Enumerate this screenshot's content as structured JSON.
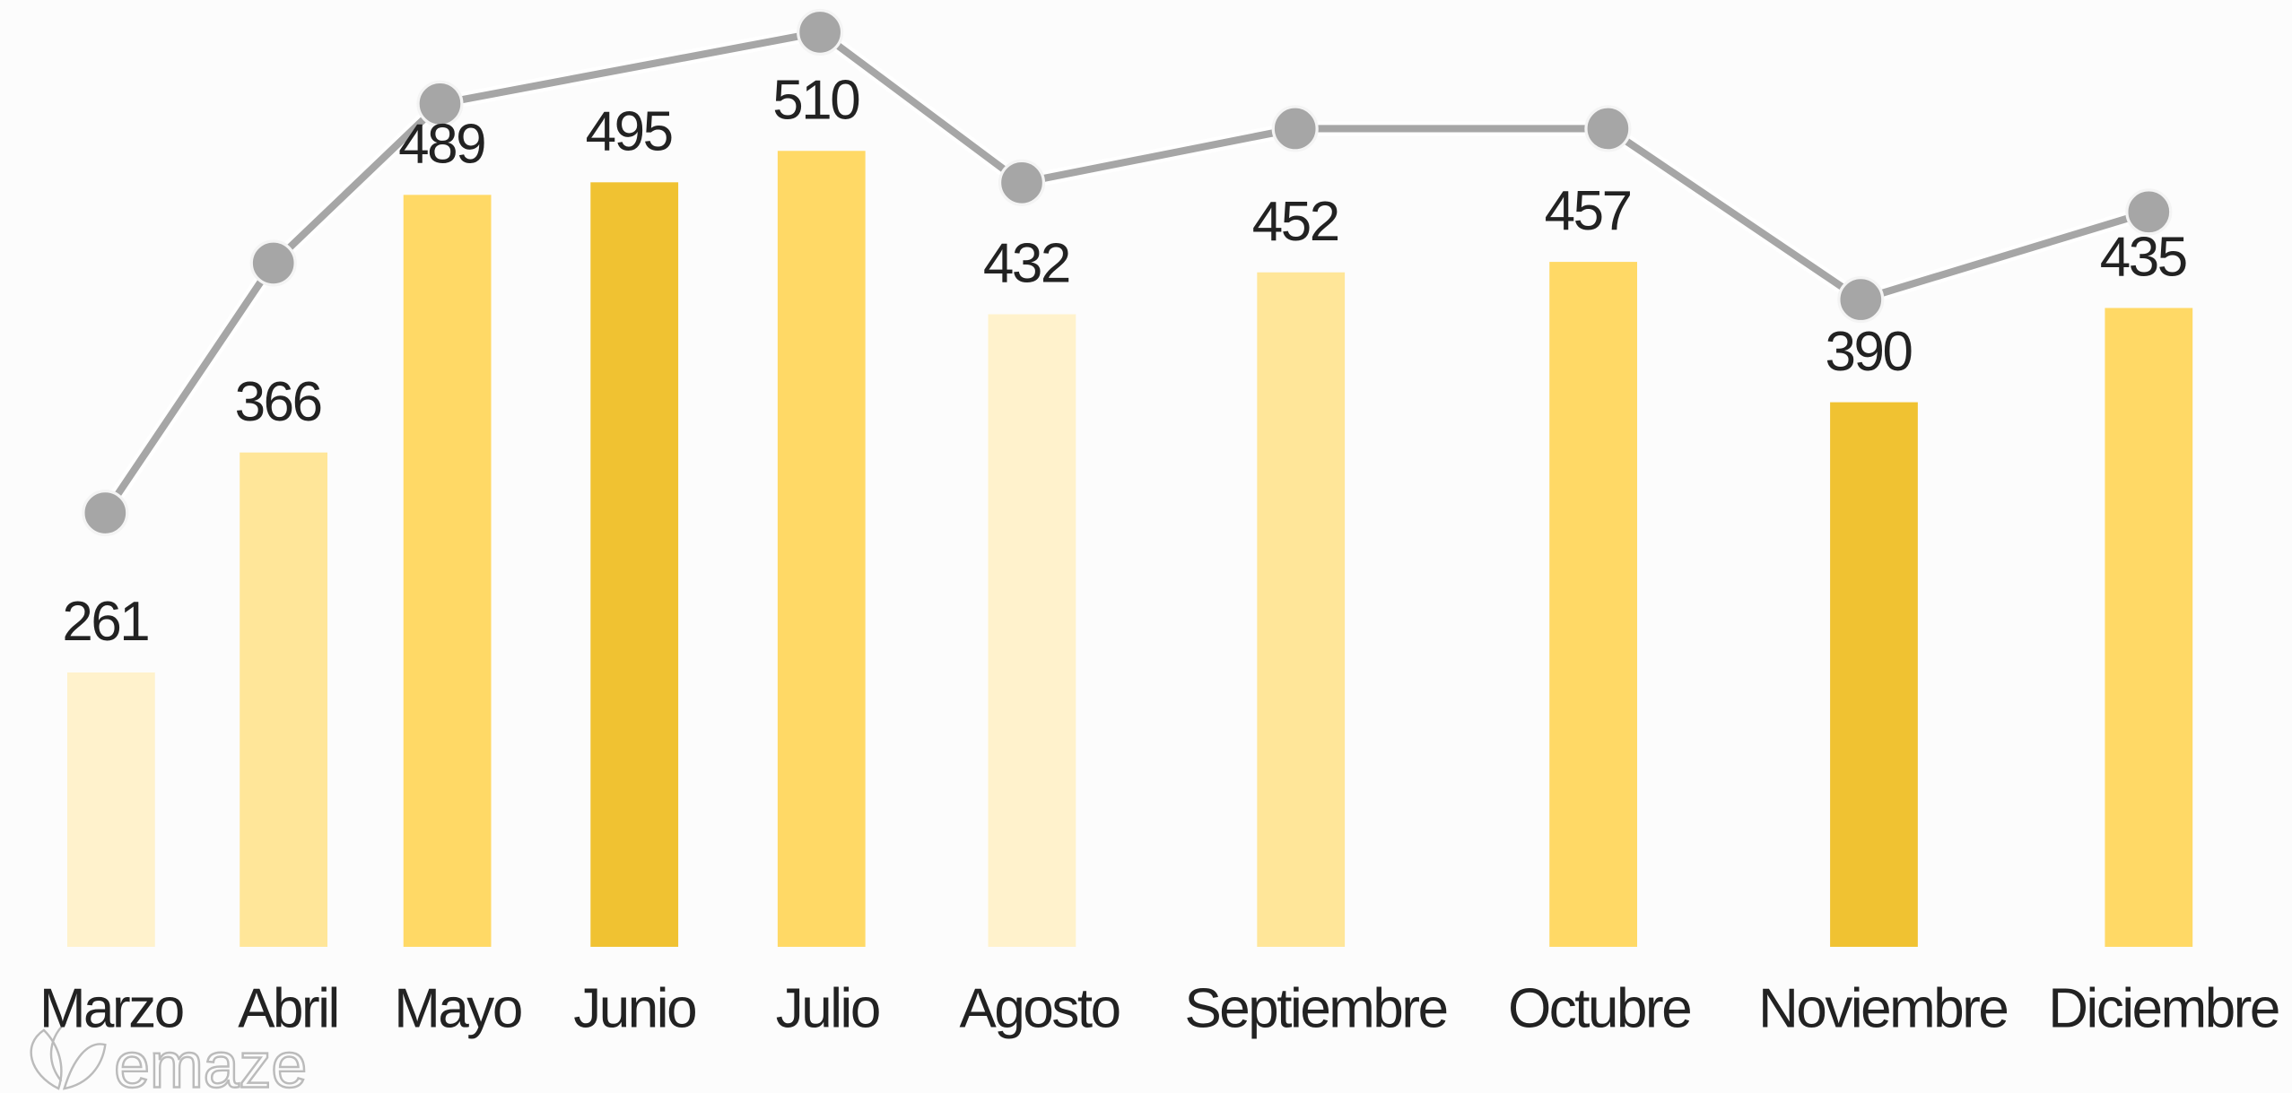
{
  "chart_data": {
    "type": "bar",
    "categories": [
      "Marzo",
      "Abril",
      "Mayo",
      "Junio",
      "Julio",
      "Agosto",
      "Septiembre",
      "Octubre",
      "Noviembre",
      "Diciembre"
    ],
    "values": [
      261,
      366,
      489,
      495,
      510,
      432,
      452,
      457,
      390,
      435
    ],
    "colors": [
      "#fff2cc",
      "#ffe699",
      "#ffd966",
      "#f0c232",
      "#ffd966",
      "#fff2cc",
      "#ffe699",
      "#ffd966",
      "#f0c232",
      "#ffd966"
    ],
    "ylim": [
      130,
      582
    ],
    "watermark": "emaze"
  }
}
